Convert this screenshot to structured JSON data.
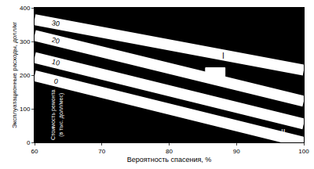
{
  "chart_data": {
    "type": "line",
    "x_label": "Вероятность спасения, %",
    "y_label": "Эксплуатационные расходы, долл/кг",
    "xlim": [
      60,
      100
    ],
    "xticks": [
      60,
      70,
      80,
      90,
      100
    ],
    "ylim": [
      0,
      400
    ],
    "yticks": [
      0,
      100,
      200,
      300,
      400
    ],
    "grid": false,
    "series": [
      {
        "name": "30",
        "color": "#ffffff",
        "x": [
          60,
          100
        ],
        "values": [
          365,
          215
        ]
      },
      {
        "name": "20",
        "color": "#ffffff",
        "x": [
          60,
          100
        ],
        "values": [
          318,
          122
        ]
      },
      {
        "name": "10",
        "color": "#ffffff",
        "x": [
          60,
          100
        ],
        "values": [
          252,
          55
        ]
      },
      {
        "name": "0",
        "color": "#ffffff",
        "x": [
          60,
          100
        ],
        "values": [
          198,
          0
        ]
      },
      {
        "type": "area",
        "color": "#ffffff",
        "x": [
          85.4,
          88.3,
          88.3,
          85.4,
          85.4
        ],
        "values": [
          180,
          180,
          222,
          222,
          180
        ]
      }
    ],
    "annotations": [
      {
        "text": "I",
        "x": 88.1,
        "y": 256,
        "color": "#000000"
      },
      {
        "text": "II",
        "x": 97,
        "y": 28,
        "color": "#ffffff"
      },
      {
        "lines": [
          "Стоимость ремонта",
          "(в тыс. долл/мес)"
        ],
        "x": 63.4,
        "y": 82,
        "color": "#ffffff",
        "vertical": true
      }
    ]
  }
}
